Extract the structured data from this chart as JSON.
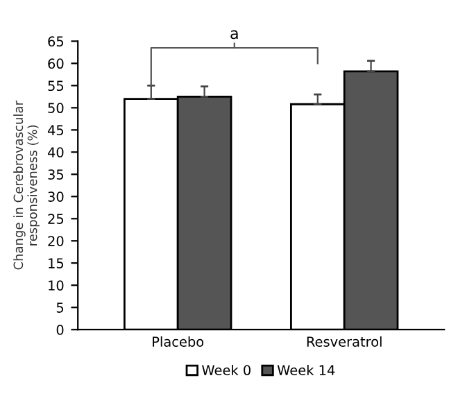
{
  "chart_data": {
    "type": "bar",
    "ylabel": "Change in Cerebrovascular\nresponsiveness (%)",
    "categories": [
      "Placebo",
      "Resveratrol"
    ],
    "series": [
      {
        "name": "Week 0",
        "color": "#ffffff",
        "values": [
          52,
          50.8
        ],
        "errors": [
          [
            52,
            55
          ],
          [
            50.8,
            53
          ]
        ]
      },
      {
        "name": "Week 14",
        "color": "#555555",
        "values": [
          52.5,
          58.2
        ],
        "errors": [
          [
            52.5,
            54.8
          ],
          [
            58.2,
            60.6
          ]
        ]
      }
    ],
    "ylim": [
      0,
      65
    ],
    "yticks": [
      0,
      5,
      10,
      15,
      20,
      25,
      30,
      35,
      40,
      45,
      50,
      55,
      60,
      65
    ],
    "annotations": [
      "a"
    ],
    "legend": "bottom",
    "grid": false
  }
}
